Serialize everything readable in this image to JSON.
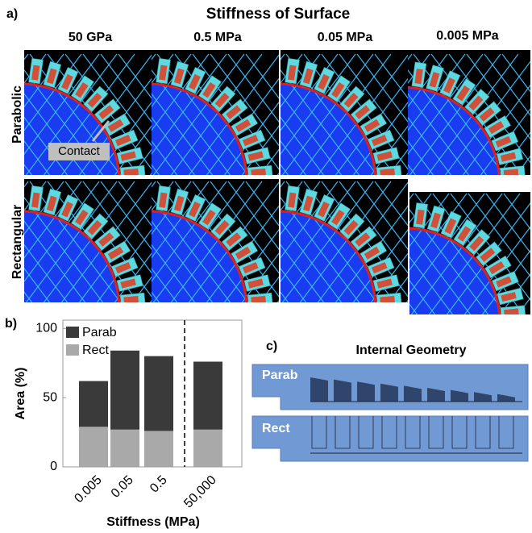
{
  "figure": {
    "panel_a": "a)",
    "title": "Stiffness of Surface",
    "columns": [
      "50 GPa",
      "0.5 MPa",
      "0.05 MPa",
      "0.005 MPa"
    ],
    "rows": [
      "Parabolic",
      "Rectangular"
    ],
    "contact": "Contact",
    "panel_b": "b)",
    "panel_c": "c)",
    "geometry_title": "Internal Geometry",
    "geometry_labels": [
      "Parab",
      "Rect"
    ]
  },
  "chart_data": {
    "type": "bar",
    "categories": [
      "0.005",
      "0.05",
      "0.5",
      "50,000"
    ],
    "series": [
      {
        "name": "Parab",
        "color": "#3a3a3a",
        "values": [
          62,
          84,
          80,
          76
        ]
      },
      {
        "name": "Rect",
        "color": "#a9a9a9",
        "values": [
          29,
          27,
          26,
          27
        ]
      }
    ],
    "ylim": [
      0,
      106
    ],
    "yticks": [
      0,
      50,
      100
    ],
    "ylabel": "Area (%)",
    "xlabel": "Stiffness (MPa)",
    "legend": "upper left"
  }
}
